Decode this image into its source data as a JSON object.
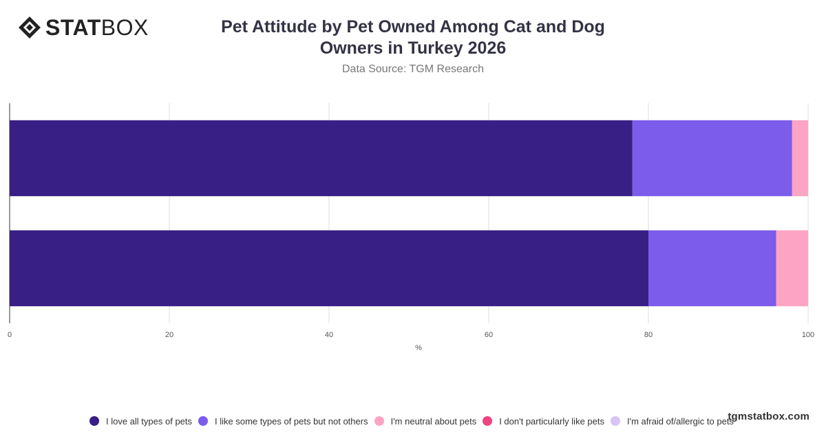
{
  "brand": {
    "logo_bold": "STAT",
    "logo_light": "BOX"
  },
  "header": {
    "title": "Pet Attitude by Pet Owned Among Cat and Dog Owners in Turkey 2026",
    "subtitle": "Data Source: TGM Research"
  },
  "watermark": "tgmstatbox.com",
  "colors": {
    "love_all": "#371F85",
    "like_some": "#7B5CEB",
    "neutral": "#FDA4C4",
    "dont_like": "#F0437F",
    "afraid": "#D8C4F5",
    "grid": "#dddddd",
    "axis": "#333333"
  },
  "chart_data": {
    "type": "bar",
    "orientation": "horizontal",
    "stacked": true,
    "categories": [
      "",
      ""
    ],
    "series": [
      {
        "name": "I love all types of pets",
        "values": [
          78,
          80
        ],
        "color": "#371F85"
      },
      {
        "name": "I like some types of pets but not others",
        "values": [
          20,
          16
        ],
        "color": "#7B5CEB"
      },
      {
        "name": "I'm neutral about pets",
        "values": [
          2,
          4
        ],
        "color": "#FDA4C4"
      },
      {
        "name": "I don't particularly like pets",
        "values": [
          0,
          0
        ],
        "color": "#F0437F"
      },
      {
        "name": "I'm afraid of/allergic to pets",
        "values": [
          0,
          0
        ],
        "color": "#D8C4F5"
      }
    ],
    "xlabel": "%",
    "ylabel": "",
    "xlim": [
      0,
      100
    ],
    "xticks": [
      0,
      20,
      40,
      60,
      80,
      100
    ],
    "grid": true,
    "legend_position": "bottom"
  }
}
